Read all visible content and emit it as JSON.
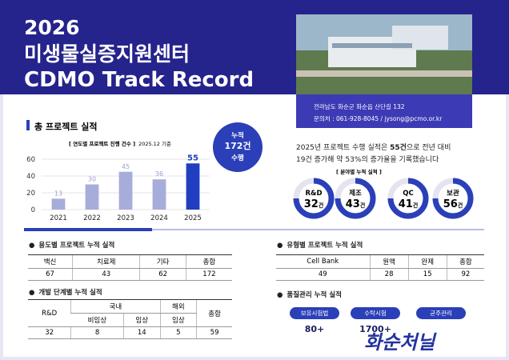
{
  "header": {
    "year": "2026",
    "title": "미생물실증지원센터",
    "subtitle": "CDMO Track Record",
    "address": "전라남도 화순군 화순읍 산단길 132",
    "contact": "문의처 : 061-928-8045 / jysong@pcmo.or.kr"
  },
  "total_section": {
    "heading": "총 프로젝트 실적",
    "badge": [
      "누적",
      "172건",
      "수행"
    ],
    "summary": {
      "line1_before": "2025년 프로젝트 수행 실적은 ",
      "highlight": "55건",
      "line1_after": "으로 전년 대비",
      "line2": "19건 증가해 약 53%의 증가율을 기록했습니다"
    },
    "field_title": "[ 분야별 누적 실적 ]",
    "fields": [
      {
        "label": "R&D",
        "value": "32",
        "unit": "건"
      },
      {
        "label": "제조",
        "value": "43",
        "unit": "건"
      },
      {
        "label": "QC",
        "value": "41",
        "unit": "건"
      },
      {
        "label": "보관",
        "value": "56",
        "unit": "건"
      }
    ]
  },
  "chart_data": {
    "type": "bar",
    "title": "[ 연도별 프로젝트 진행 건수 ]",
    "note": "2025.12 기준",
    "categories": [
      "2021",
      "2022",
      "2023",
      "2024",
      "2025"
    ],
    "values": [
      13,
      30,
      45,
      36,
      55
    ],
    "colors": [
      "#a7addb",
      "#a7addb",
      "#a7addb",
      "#a7addb",
      "#1f3fc0"
    ],
    "ylim": [
      0,
      60
    ],
    "yticks": [
      0,
      20,
      40,
      60
    ],
    "grid": true
  },
  "tables": {
    "usage": {
      "title": "용도별 프로젝트 누적 실적",
      "headers": [
        "백신",
        "치료제",
        "기타",
        "총합"
      ],
      "values": [
        67,
        43,
        62,
        172
      ]
    },
    "stage": {
      "title": "개발 단계별 누적 실적",
      "rnd": "R&D",
      "domestic": "국내",
      "overseas": "해외",
      "total": "총합",
      "sub": [
        "비임상",
        "임상",
        "임상"
      ],
      "values": [
        32,
        8,
        14,
        5,
        59
      ]
    },
    "type": {
      "title": "유형별 프로젝트 누적 실적",
      "headers": [
        "Cell Bank",
        "원액",
        "완제",
        "총합"
      ],
      "values": [
        49,
        28,
        15,
        92
      ]
    }
  },
  "quality": {
    "title": "품질관리 누적 실적",
    "items": [
      {
        "label": "보유시험법",
        "value": "80+"
      },
      {
        "label": "수탁시험",
        "value": "1700+"
      },
      {
        "label": "균주관리"
      }
    ]
  },
  "logo": "화순처닐"
}
